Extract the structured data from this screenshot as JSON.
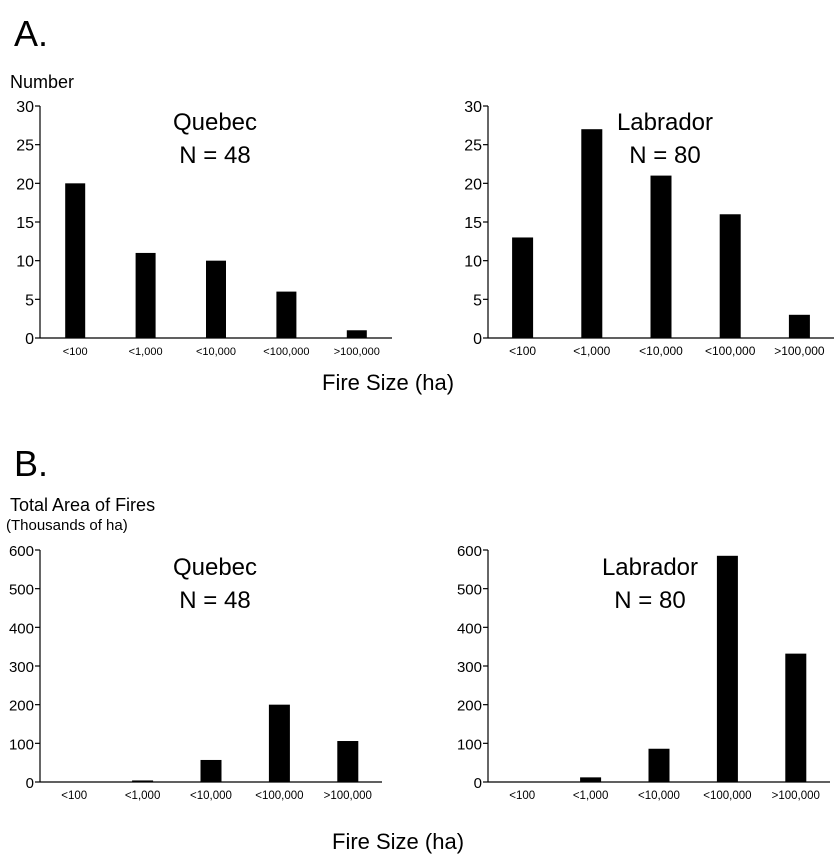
{
  "section_a": {
    "letter": "A.",
    "ylabel": "Number",
    "xlabel": "Fire Size (ha)"
  },
  "section_b": {
    "letter": "B.",
    "ylabel": "Total Area of Fires",
    "ylabel_sub": "(Thousands of ha)",
    "xlabel": "Fire Size (ha)"
  },
  "chart_data": [
    {
      "type": "bar",
      "title": "Quebec",
      "subtitle": "N = 48",
      "categories": [
        "<100",
        "<1,000",
        "<10,000",
        "<100,000",
        ">100,000"
      ],
      "values": [
        20,
        11,
        10,
        6,
        1
      ],
      "ylim": [
        0,
        30
      ],
      "yticks": [
        0,
        5,
        10,
        15,
        20,
        25,
        30
      ],
      "xlabel": "Fire Size (ha)",
      "ylabel": "Number",
      "grid": false
    },
    {
      "type": "bar",
      "title": "Labrador",
      "subtitle": "N = 80",
      "categories": [
        "<100",
        "<1,000",
        "<10,000",
        "<100,000",
        ">100,000"
      ],
      "values": [
        13,
        27,
        21,
        16,
        3
      ],
      "ylim": [
        0,
        30
      ],
      "yticks": [
        0,
        5,
        10,
        15,
        20,
        25,
        30
      ],
      "xlabel": "Fire Size (ha)",
      "ylabel": "Number",
      "grid": false
    },
    {
      "type": "bar",
      "title": "Quebec",
      "subtitle": "N = 48",
      "categories": [
        "<100",
        "<1,000",
        "<10,000",
        "<100,000",
        ">100,000"
      ],
      "values": [
        0,
        4,
        57,
        200,
        106
      ],
      "ylim": [
        0,
        600
      ],
      "yticks": [
        0,
        100,
        200,
        300,
        400,
        500,
        600
      ],
      "xlabel": "Fire Size (ha)",
      "ylabel": "Total Area of Fires (Thousands of ha)",
      "grid": false
    },
    {
      "type": "bar",
      "title": "Labrador",
      "subtitle": "N = 80",
      "categories": [
        "<100",
        "<1,000",
        "<10,000",
        "<100,000",
        ">100,000"
      ],
      "values": [
        0,
        12,
        86,
        585,
        332
      ],
      "ylim": [
        0,
        600
      ],
      "yticks": [
        0,
        100,
        200,
        300,
        400,
        500,
        600
      ],
      "xlabel": "Fire Size (ha)",
      "ylabel": "Total Area of Fires (Thousands of ha)",
      "grid": false
    }
  ]
}
